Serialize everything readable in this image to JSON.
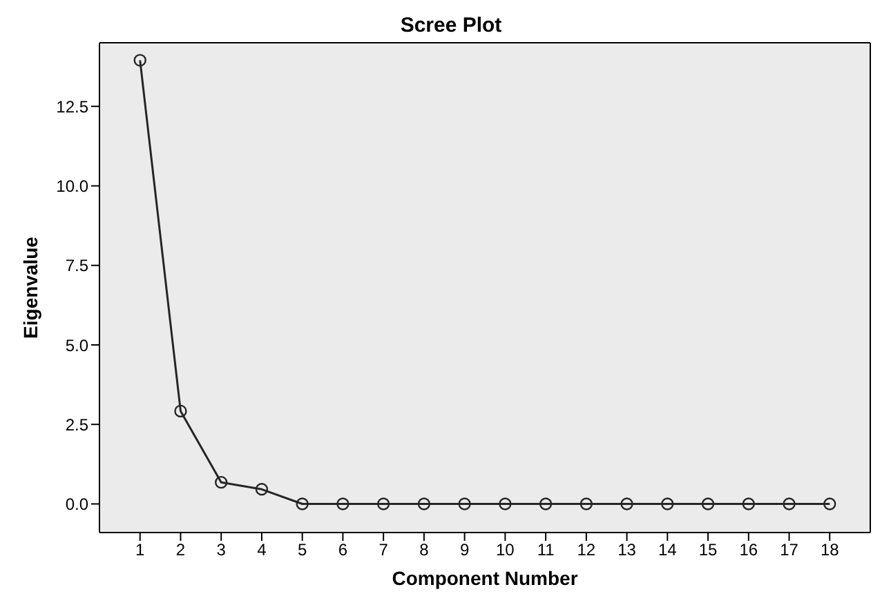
{
  "chart_data": {
    "type": "line",
    "title": "Scree Plot",
    "xlabel": "Component Number",
    "ylabel": "Eigenvalue",
    "x": [
      1,
      2,
      3,
      4,
      5,
      6,
      7,
      8,
      9,
      10,
      11,
      12,
      13,
      14,
      15,
      16,
      17,
      18
    ],
    "series": [
      {
        "color": "#262626",
        "values": [
          13.95,
          2.92,
          0.68,
          0.46,
          0,
          0,
          0,
          0,
          0,
          0,
          0,
          0,
          0,
          0,
          0,
          0,
          0,
          0
        ]
      }
    ],
    "xlim": [
      0,
      19
    ],
    "xticks": [
      1,
      2,
      3,
      4,
      5,
      6,
      7,
      8,
      9,
      10,
      11,
      12,
      13,
      14,
      15,
      16,
      17,
      18
    ],
    "ylim": [
      -0.9,
      14.5
    ],
    "yticks": [
      {
        "value": 0,
        "label": "0.0"
      },
      {
        "value": 2.5,
        "label": "2.5"
      },
      {
        "value": 5,
        "label": "5.0"
      },
      {
        "value": 7.5,
        "label": "7.5"
      },
      {
        "value": 10,
        "label": "10.0"
      },
      {
        "value": 12.5,
        "label": "12.5"
      }
    ],
    "grid": false,
    "legend": false,
    "marker": "circle",
    "line_style": "solid"
  }
}
